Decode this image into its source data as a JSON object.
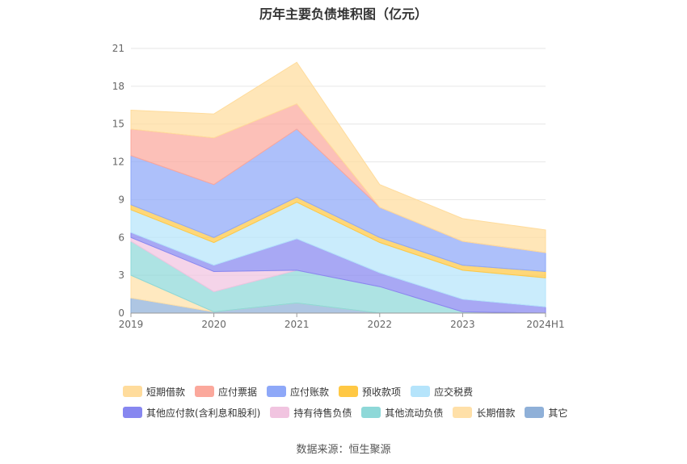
{
  "chart_data": {
    "type": "area",
    "stacked": true,
    "title": "历年主要负债堆积图（亿元）",
    "categories": [
      "2019",
      "2020",
      "2021",
      "2022",
      "2023",
      "2024H1"
    ],
    "yticks": [
      "0",
      "3",
      "6",
      "9",
      "12",
      "15",
      "18",
      "21"
    ],
    "ylim": [
      0,
      21
    ],
    "grid": true,
    "legend_position": "bottom",
    "series": [
      {
        "name": "其它",
        "color": "#8fb0d8",
        "values": [
          1.2,
          0.1,
          0.8,
          0.0,
          0.0,
          0.0
        ]
      },
      {
        "name": "长期借款",
        "color": "#ffe0a8",
        "values": [
          1.8,
          0.0,
          0.0,
          0.0,
          0.0,
          0.0
        ]
      },
      {
        "name": "其他流动负债",
        "color": "#8ed8d8",
        "values": [
          2.7,
          1.6,
          2.6,
          2.1,
          0.1,
          0.0
        ]
      },
      {
        "name": "持有待售负债",
        "color": "#f1c4e0",
        "values": [
          0.3,
          1.6,
          0.0,
          0.0,
          0.0,
          0.0
        ]
      },
      {
        "name": "其他应付款(含利息和股利)",
        "color": "#8787f0",
        "values": [
          0.4,
          0.5,
          2.5,
          1.1,
          1.0,
          0.5
        ]
      },
      {
        "name": "应交税费",
        "color": "#b5e4fb",
        "values": [
          1.8,
          1.8,
          2.9,
          2.4,
          2.3,
          2.3
        ]
      },
      {
        "name": "预收款项",
        "color": "#ffc844",
        "values": [
          0.4,
          0.4,
          0.4,
          0.4,
          0.4,
          0.5
        ]
      },
      {
        "name": "应付账款",
        "color": "#8ea8f8",
        "values": [
          3.9,
          4.2,
          5.4,
          2.4,
          1.9,
          1.5
        ]
      },
      {
        "name": "应付票据",
        "color": "#fba89c",
        "values": [
          2.1,
          3.7,
          2.0,
          0.0,
          0.0,
          0.0
        ]
      },
      {
        "name": "短期借款",
        "color": "#ffdc9c",
        "values": [
          1.5,
          1.9,
          3.3,
          1.8,
          1.8,
          1.8
        ]
      }
    ],
    "legend_rows": [
      [
        "短期借款",
        "应付票据",
        "应付账款",
        "预收款项",
        "应交税费"
      ],
      [
        "其他应付款(含利息和股利)",
        "持有待售负债",
        "其他流动负债",
        "长期借款",
        "其它"
      ]
    ],
    "source": "数据来源：恒生聚源"
  }
}
